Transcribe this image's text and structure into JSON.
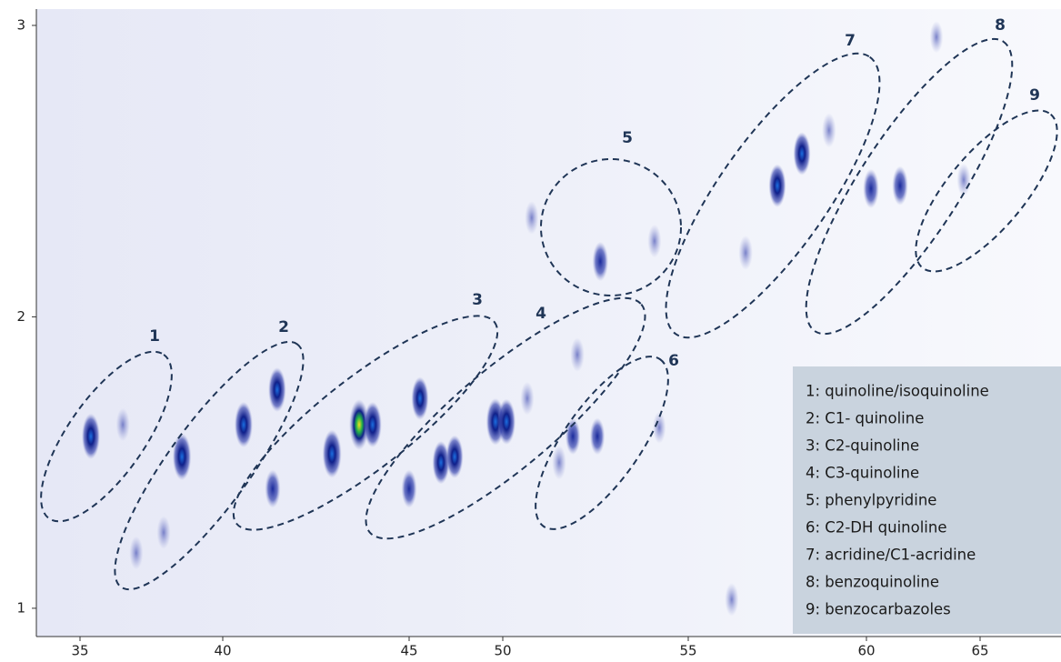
{
  "chart_data": {
    "type": "scatter",
    "x": [
      35.38,
      36.5,
      38.57,
      40.56,
      41.46,
      41.34,
      42.93,
      43.66,
      44.02,
      45.58,
      46.7,
      47.43,
      45.0,
      49.61,
      50.1,
      50.66,
      52.63,
      52.01,
      51.89,
      52.55,
      51.52,
      57.5,
      58.19,
      58.95,
      60.2,
      61.48,
      56.61,
      54.09,
      50.78,
      63.08,
      64.28,
      56.22,
      37.93,
      36.97,
      54.22
    ],
    "y": [
      1.59,
      1.63,
      1.52,
      1.63,
      1.75,
      1.41,
      1.53,
      1.63,
      1.63,
      1.72,
      1.5,
      1.52,
      1.41,
      1.64,
      1.64,
      1.72,
      2.19,
      1.87,
      1.59,
      1.59,
      1.5,
      2.45,
      2.56,
      2.64,
      2.44,
      2.45,
      2.22,
      2.26,
      2.34,
      2.96,
      2.47,
      1.03,
      1.26,
      1.19,
      1.62
    ],
    "intensity": [
      0.8,
      0.3,
      0.85,
      0.8,
      0.75,
      0.5,
      0.9,
      1.0,
      0.8,
      0.7,
      0.7,
      0.7,
      0.5,
      0.85,
      0.8,
      0.3,
      0.55,
      0.35,
      0.45,
      0.45,
      0.35,
      0.7,
      0.7,
      0.35,
      0.55,
      0.55,
      0.35,
      0.3,
      0.3,
      0.25,
      0.3,
      0.3,
      0.3,
      0.3,
      0.25
    ],
    "xlim": [
      33.47,
      68.56
    ],
    "ylim": [
      0.903,
      3.056
    ],
    "xticks": [
      35,
      40,
      45,
      50,
      55,
      60,
      65
    ],
    "yticks": [
      1,
      2,
      3
    ],
    "regions": [
      "1",
      "2",
      "3",
      "4",
      "5",
      "6",
      "7",
      "8",
      "9"
    ],
    "legend": [
      "1: quinoline/isoquinoline",
      "2: C1- quinoline",
      "3: C2-quinoline",
      "4: C3-quinoline",
      "5: phenylpyridine",
      "6: C2-DH quinoline",
      "7: acridine/C1-acridine",
      "8: benzoquinoline",
      "9: benzocarbazoles"
    ]
  }
}
